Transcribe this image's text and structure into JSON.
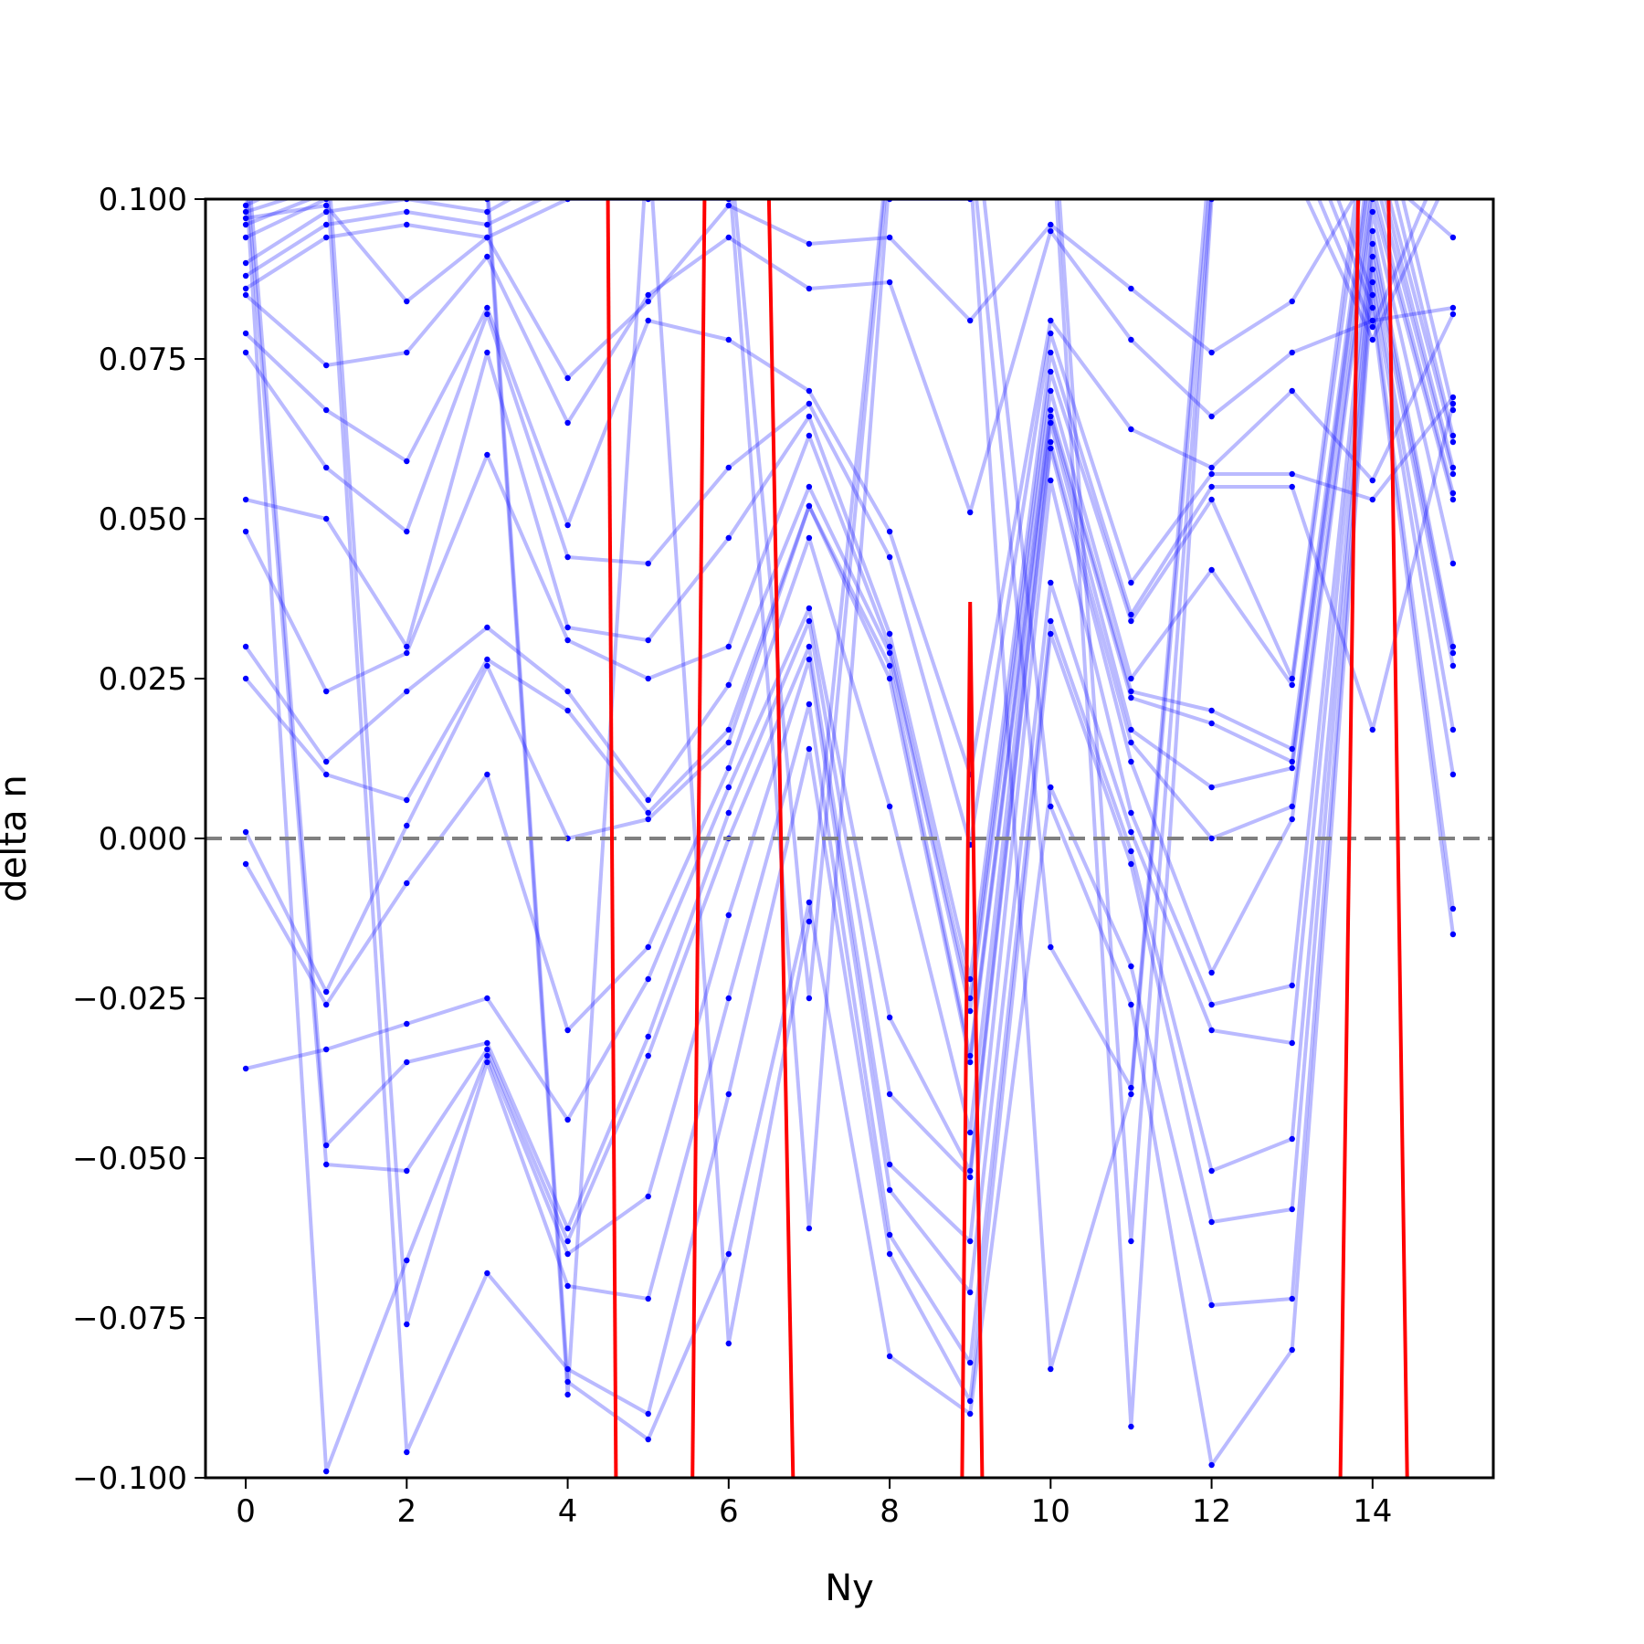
{
  "chart_data": {
    "type": "line",
    "title": "",
    "xlabel": "Ny",
    "ylabel": "delta n",
    "xlim": [
      -0.5,
      15.5
    ],
    "ylim": [
      -0.1,
      0.1
    ],
    "xticks": [
      0,
      2,
      4,
      6,
      8,
      10,
      12,
      14
    ],
    "xtick_labels": [
      "0",
      "2",
      "4",
      "6",
      "8",
      "10",
      "12",
      "14"
    ],
    "yticks": [
      -0.1,
      -0.075,
      -0.05,
      -0.025,
      0.0,
      0.025,
      0.05,
      0.075,
      0.1
    ],
    "ytick_labels": [
      "−0.100",
      "−0.075",
      "−0.050",
      "−0.025",
      "0.000",
      "0.025",
      "0.050",
      "0.075",
      "0.100"
    ],
    "reference_line": {
      "y": 0.0,
      "style": "dashed",
      "color": "#808080"
    },
    "series_style": {
      "color": "#0000ff",
      "alpha": 0.27,
      "marker": "dot"
    },
    "highlight_style": {
      "color": "#ff0000"
    },
    "series": [
      {
        "x": [
          0,
          1,
          2,
          3,
          4,
          5,
          6,
          7,
          8,
          9,
          10,
          11,
          12,
          13,
          14,
          15
        ],
        "y": [
          0.097,
          0.099,
          0.084,
          0.094,
          0.072,
          0.084,
          0.099,
          0.093,
          0.094,
          0.081,
          0.096,
          0.086,
          0.076,
          0.084,
          0.105,
          0.094
        ]
      },
      {
        "x": [
          0,
          1,
          2,
          3,
          4,
          5,
          6,
          7,
          8,
          9,
          10,
          11,
          12,
          13,
          14,
          15
        ],
        "y": [
          0.085,
          0.074,
          0.076,
          0.091,
          0.065,
          0.085,
          0.094,
          0.086,
          0.087,
          0.051,
          0.095,
          0.078,
          0.066,
          0.076,
          0.081,
          0.083
        ]
      },
      {
        "x": [
          0,
          1,
          2,
          3,
          4,
          5,
          6,
          7,
          8,
          9,
          10,
          11,
          12,
          13,
          14,
          15
        ],
        "y": [
          0.079,
          0.067,
          0.059,
          0.083,
          0.049,
          0.081,
          0.078,
          0.07,
          0.048,
          0.01,
          0.081,
          0.064,
          0.058,
          0.07,
          0.056,
          0.082
        ]
      },
      {
        "x": [
          0,
          1,
          2,
          3,
          4,
          5,
          6,
          7,
          8,
          9,
          10,
          11,
          12,
          13,
          14,
          15
        ],
        "y": [
          0.076,
          0.058,
          0.048,
          0.082,
          0.044,
          0.043,
          0.058,
          0.068,
          0.044,
          -0.001,
          0.079,
          0.04,
          0.057,
          0.057,
          0.053,
          0.069
        ]
      },
      {
        "x": [
          0,
          1,
          2,
          3,
          4,
          5,
          6,
          7,
          8,
          9,
          10,
          11,
          12,
          13,
          14,
          15
        ],
        "y": [
          0.053,
          0.05,
          0.03,
          0.076,
          0.033,
          0.031,
          0.047,
          0.066,
          0.032,
          -0.022,
          0.076,
          0.035,
          0.055,
          0.055,
          0.017,
          0.068
        ]
      },
      {
        "x": [
          0,
          1,
          2,
          3,
          4,
          5,
          6,
          7,
          8,
          9,
          10,
          11,
          12,
          13,
          14,
          15
        ],
        "y": [
          0.048,
          0.023,
          0.029,
          0.06,
          0.031,
          0.025,
          0.03,
          0.063,
          0.03,
          -0.025,
          0.073,
          0.034,
          0.053,
          0.025,
          0.12,
          0.067
        ]
      },
      {
        "x": [
          0,
          1,
          2,
          3,
          4,
          5,
          6,
          7,
          8,
          9,
          10,
          11,
          12,
          13,
          14,
          15
        ],
        "y": [
          0.03,
          0.012,
          0.023,
          0.033,
          0.023,
          0.006,
          0.024,
          0.055,
          0.029,
          -0.027,
          0.07,
          0.025,
          0.042,
          0.024,
          0.115,
          0.063
        ]
      },
      {
        "x": [
          0,
          1,
          2,
          3,
          4,
          5,
          6,
          7,
          8,
          9,
          10,
          11,
          12,
          13,
          14,
          15
        ],
        "y": [
          0.025,
          0.01,
          0.006,
          0.028,
          0.02,
          0.004,
          0.017,
          0.052,
          0.027,
          -0.034,
          0.067,
          0.023,
          0.02,
          0.014,
          0.11,
          0.062
        ]
      },
      {
        "x": [
          0,
          1,
          2,
          3,
          4,
          5,
          6,
          7,
          8,
          9,
          10,
          11,
          12,
          13,
          14,
          15
        ],
        "y": [
          0.001,
          -0.024,
          0.002,
          0.027,
          0.0,
          0.003,
          0.015,
          0.052,
          0.025,
          -0.035,
          0.066,
          0.022,
          0.018,
          0.012,
          0.108,
          0.058
        ]
      },
      {
        "x": [
          0,
          1,
          2,
          3,
          4,
          5,
          6,
          7,
          8,
          9,
          10,
          11,
          12,
          13,
          14,
          15
        ],
        "y": [
          -0.004,
          -0.026,
          -0.007,
          0.01,
          -0.03,
          -0.017,
          0.011,
          0.047,
          0.005,
          -0.046,
          0.065,
          0.017,
          0.008,
          0.011,
          0.105,
          0.057
        ]
      },
      {
        "x": [
          0,
          1,
          2,
          3,
          4,
          5,
          6,
          7,
          8,
          9,
          10,
          11,
          12,
          13,
          14,
          15
        ],
        "y": [
          -0.036,
          -0.033,
          -0.029,
          -0.025,
          -0.044,
          -0.022,
          0.008,
          0.036,
          -0.028,
          -0.052,
          0.062,
          0.015,
          0.0,
          0.005,
          0.102,
          0.054
        ]
      },
      {
        "x": [
          0,
          1,
          2,
          3,
          4,
          5,
          6,
          7,
          8,
          9,
          10,
          11,
          12,
          13,
          14,
          15
        ],
        "y": [
          0.11,
          -0.048,
          -0.035,
          -0.032,
          -0.061,
          -0.031,
          0.004,
          0.034,
          -0.04,
          -0.053,
          0.061,
          0.012,
          -0.021,
          0.003,
          0.1,
          0.053
        ]
      },
      {
        "x": [
          0,
          1,
          2,
          3,
          4,
          5,
          6,
          7,
          8,
          9,
          10,
          11,
          12,
          13,
          14,
          15
        ],
        "y": [
          0.105,
          -0.051,
          -0.052,
          -0.033,
          -0.063,
          -0.034,
          0.0,
          0.03,
          -0.051,
          -0.063,
          0.056,
          0.004,
          -0.026,
          -0.023,
          0.098,
          0.043
        ]
      },
      {
        "x": [
          0,
          1,
          2,
          3,
          4,
          5,
          6,
          7,
          8,
          9,
          10,
          11,
          12,
          13,
          14,
          15
        ],
        "y": [
          0.103,
          -0.099,
          -0.066,
          -0.034,
          -0.065,
          -0.056,
          -0.012,
          0.028,
          -0.055,
          -0.071,
          0.04,
          0.001,
          -0.03,
          -0.032,
          0.095,
          0.03
        ]
      },
      {
        "x": [
          0,
          1,
          2,
          3,
          4,
          5,
          6,
          7,
          8,
          9,
          10,
          11,
          12,
          13,
          14,
          15
        ],
        "y": [
          0.101,
          0.11,
          -0.076,
          -0.035,
          -0.07,
          -0.072,
          -0.025,
          0.021,
          -0.062,
          -0.082,
          0.034,
          -0.002,
          -0.052,
          -0.047,
          0.093,
          0.029
        ]
      },
      {
        "x": [
          0,
          1,
          2,
          3,
          4,
          5,
          6,
          7,
          8,
          9,
          10,
          11,
          12,
          13,
          14,
          15
        ],
        "y": [
          0.099,
          0.105,
          -0.096,
          -0.068,
          -0.083,
          -0.09,
          -0.04,
          0.014,
          -0.065,
          -0.088,
          0.032,
          -0.004,
          -0.06,
          -0.058,
          0.091,
          0.027
        ]
      },
      {
        "x": [
          0,
          1,
          2,
          3,
          4,
          5,
          6,
          7,
          8,
          9,
          10,
          11,
          12,
          13,
          14,
          15
        ],
        "y": [
          0.098,
          0.102,
          0.105,
          0.103,
          -0.085,
          -0.094,
          -0.065,
          -0.01,
          -0.081,
          -0.09,
          0.008,
          -0.02,
          -0.073,
          -0.072,
          0.089,
          0.017
        ]
      },
      {
        "x": [
          0,
          1,
          2,
          3,
          4,
          5,
          6,
          7,
          8,
          9,
          10,
          11,
          12,
          13,
          14,
          15
        ],
        "y": [
          0.096,
          0.101,
          0.104,
          0.101,
          -0.087,
          0.11,
          -0.079,
          -0.013,
          0.11,
          0.12,
          0.005,
          -0.026,
          -0.098,
          -0.08,
          0.087,
          0.01
        ]
      },
      {
        "x": [
          0,
          1,
          2,
          3,
          4,
          5,
          6,
          7,
          8,
          9,
          10,
          11,
          12,
          13,
          14,
          15
        ],
        "y": [
          0.094,
          0.1,
          0.102,
          0.1,
          0.11,
          0.108,
          0.11,
          -0.025,
          0.108,
          0.11,
          -0.017,
          -0.039,
          0.11,
          0.12,
          0.085,
          -0.011
        ]
      },
      {
        "x": [
          0,
          1,
          2,
          3,
          4,
          5,
          6,
          7,
          8,
          9,
          10,
          11,
          12,
          13,
          14,
          15
        ],
        "y": [
          0.09,
          0.098,
          0.1,
          0.098,
          0.105,
          0.104,
          0.105,
          -0.061,
          0.104,
          0.105,
          -0.083,
          -0.04,
          0.105,
          0.115,
          0.083,
          -0.015
        ]
      },
      {
        "x": [
          0,
          1,
          2,
          3,
          4,
          5,
          6,
          7,
          8,
          9,
          10,
          11,
          12,
          13,
          14,
          15
        ],
        "y": [
          0.088,
          0.096,
          0.098,
          0.096,
          0.102,
          0.102,
          0.102,
          0.11,
          0.102,
          0.102,
          0.12,
          -0.063,
          0.102,
          0.11,
          0.08,
          0.11
        ]
      },
      {
        "x": [
          0,
          1,
          2,
          3,
          4,
          5,
          6,
          7,
          8,
          9,
          10,
          11,
          12,
          13,
          14,
          15
        ],
        "y": [
          0.086,
          0.094,
          0.096,
          0.094,
          0.1,
          0.1,
          0.1,
          0.105,
          0.1,
          0.1,
          0.115,
          -0.092,
          0.1,
          0.105,
          0.078,
          0.105
        ]
      }
    ],
    "highlight": [
      {
        "x": [
          4.5,
          4.6
        ],
        "y": [
          0.1,
          -0.1
        ]
      },
      {
        "x": [
          5.55,
          5.7
        ],
        "y": [
          -0.1,
          0.1
        ]
      },
      {
        "x": [
          6.5,
          6.8
        ],
        "y": [
          0.1,
          -0.1
        ]
      },
      {
        "x": [
          8.9,
          9.0,
          9.15
        ],
        "y": [
          -0.1,
          0.037,
          -0.1
        ]
      },
      {
        "x": [
          13.6,
          13.82
        ],
        "y": [
          -0.1,
          0.1
        ]
      },
      {
        "x": [
          14.2,
          14.43
        ],
        "y": [
          0.1,
          -0.1
        ]
      }
    ]
  }
}
